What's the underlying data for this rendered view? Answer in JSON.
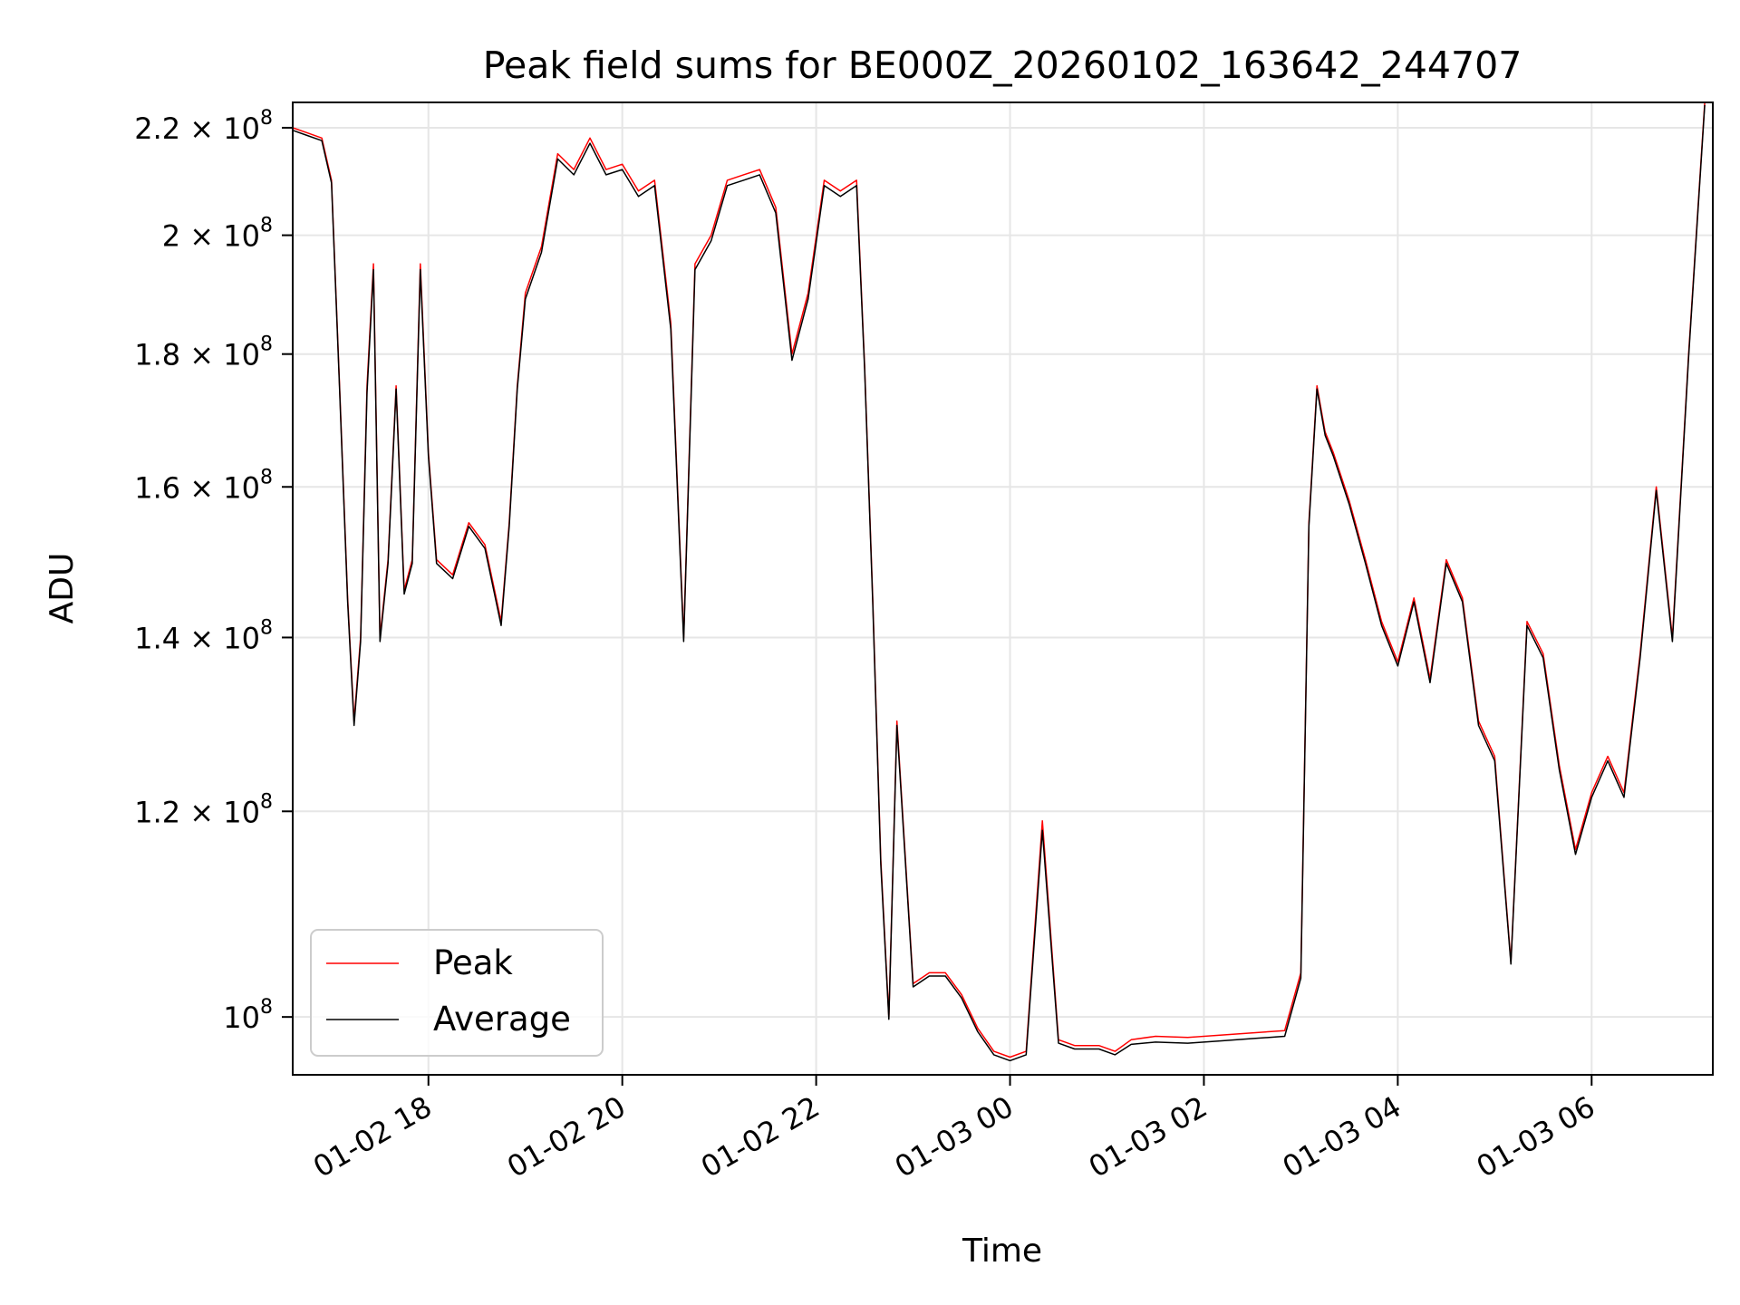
{
  "chart_data": {
    "type": "line",
    "title": "Peak field sums for BE000Z_20260102_163642_244707",
    "xlabel": "Time",
    "ylabel": "ADU",
    "x_type": "datetime",
    "xlim": [
      "2026-01-02 16:36",
      "2026-01-03 07:15"
    ],
    "ylim": [
      95000000,
      225000000
    ],
    "y_scale": "log",
    "grid": true,
    "legend_position": "lower-left",
    "x_ticks": [
      "01-02 18",
      "01-02 20",
      "01-02 22",
      "01-03 00",
      "01-03 02",
      "01-03 04",
      "01-03 06"
    ],
    "y_ticks": [
      {
        "value": 100000000,
        "mantissa": "",
        "exponent": "8"
      },
      {
        "value": 120000000,
        "mantissa": "1.2",
        "exponent": "8"
      },
      {
        "value": 140000000,
        "mantissa": "1.4",
        "exponent": "8"
      },
      {
        "value": 160000000,
        "mantissa": "1.6",
        "exponent": "8"
      },
      {
        "value": 180000000,
        "mantissa": "1.8",
        "exponent": "8"
      },
      {
        "value": 200000000,
        "mantissa": "2",
        "exponent": "8"
      },
      {
        "value": 220000000,
        "mantissa": "2.2",
        "exponent": "8"
      }
    ],
    "x": [
      "2026-01-02 16:36",
      "2026-01-02 16:45",
      "2026-01-02 16:54",
      "2026-01-02 17:00",
      "2026-01-02 17:05",
      "2026-01-02 17:10",
      "2026-01-02 17:14",
      "2026-01-02 17:18",
      "2026-01-02 17:22",
      "2026-01-02 17:26",
      "2026-01-02 17:30",
      "2026-01-02 17:35",
      "2026-01-02 17:40",
      "2026-01-02 17:45",
      "2026-01-02 17:50",
      "2026-01-02 17:55",
      "2026-01-02 18:00",
      "2026-01-02 18:05",
      "2026-01-02 18:15",
      "2026-01-02 18:25",
      "2026-01-02 18:35",
      "2026-01-02 18:45",
      "2026-01-02 18:50",
      "2026-01-02 18:55",
      "2026-01-02 19:00",
      "2026-01-02 19:10",
      "2026-01-02 19:20",
      "2026-01-02 19:30",
      "2026-01-02 19:40",
      "2026-01-02 19:50",
      "2026-01-02 20:00",
      "2026-01-02 20:10",
      "2026-01-02 20:20",
      "2026-01-02 20:30",
      "2026-01-02 20:38",
      "2026-01-02 20:45",
      "2026-01-02 20:55",
      "2026-01-02 21:05",
      "2026-01-02 21:15",
      "2026-01-02 21:25",
      "2026-01-02 21:35",
      "2026-01-02 21:45",
      "2026-01-02 21:55",
      "2026-01-02 22:05",
      "2026-01-02 22:15",
      "2026-01-02 22:25",
      "2026-01-02 22:30",
      "2026-01-02 22:35",
      "2026-01-02 22:40",
      "2026-01-02 22:45",
      "2026-01-02 22:50",
      "2026-01-02 23:00",
      "2026-01-02 23:10",
      "2026-01-02 23:20",
      "2026-01-02 23:30",
      "2026-01-02 23:40",
      "2026-01-02 23:50",
      "2026-01-03 00:00",
      "2026-01-03 00:10",
      "2026-01-03 00:20",
      "2026-01-03 00:30",
      "2026-01-03 00:40",
      "2026-01-03 00:55",
      "2026-01-03 01:05",
      "2026-01-03 01:15",
      "2026-01-03 01:30",
      "2026-01-03 01:50",
      "2026-01-03 02:10",
      "2026-01-03 02:30",
      "2026-01-03 02:50",
      "2026-01-03 03:00",
      "2026-01-03 03:05",
      "2026-01-03 03:10",
      "2026-01-03 03:15",
      "2026-01-03 03:20",
      "2026-01-03 03:30",
      "2026-01-03 03:40",
      "2026-01-03 03:50",
      "2026-01-03 04:00",
      "2026-01-03 04:10",
      "2026-01-03 04:20",
      "2026-01-03 04:30",
      "2026-01-03 04:40",
      "2026-01-03 04:50",
      "2026-01-03 05:00",
      "2026-01-03 05:10",
      "2026-01-03 05:20",
      "2026-01-03 05:30",
      "2026-01-03 05:40",
      "2026-01-03 05:50",
      "2026-01-03 06:00",
      "2026-01-03 06:10",
      "2026-01-03 06:20",
      "2026-01-03 06:30",
      "2026-01-03 06:40",
      "2026-01-03 06:50",
      "2026-01-03 07:00",
      "2026-01-03 07:10"
    ],
    "series": [
      {
        "name": "Peak",
        "color": "#ff0000",
        "values": [
          220000000,
          219000000,
          218000000,
          210000000,
          175000000,
          145000000,
          130000000,
          140000000,
          175000000,
          195000000,
          140000000,
          150000000,
          175000000,
          146000000,
          150000000,
          195000000,
          165000000,
          150000000,
          148000000,
          155000000,
          152000000,
          142000000,
          155000000,
          175000000,
          190000000,
          198000000,
          215000000,
          212000000,
          218000000,
          212000000,
          213000000,
          208000000,
          210000000,
          185000000,
          140000000,
          195000000,
          200000000,
          210000000,
          211000000,
          212000000,
          205000000,
          180000000,
          190000000,
          210000000,
          208000000,
          210000000,
          178000000,
          145000000,
          115000000,
          100000000,
          130000000,
          103000000,
          104000000,
          104000000,
          102000000,
          99000000,
          97000000,
          96500000,
          97000000,
          119000000,
          98000000,
          97500000,
          97500000,
          97000000,
          98000000,
          98300000,
          98200000,
          98400000,
          98600000,
          98800000,
          104000000,
          155000000,
          175000000,
          168000000,
          165000000,
          158000000,
          150000000,
          142000000,
          137000000,
          145000000,
          135000000,
          150000000,
          145000000,
          130000000,
          126000000,
          105000000,
          142000000,
          138000000,
          125000000,
          116000000,
          122000000,
          126000000,
          122000000,
          138000000,
          160000000,
          140000000,
          180000000,
          225000000
        ]
      },
      {
        "name": "Average",
        "color": "#000000",
        "values": [
          219500000,
          218500000,
          217500000,
          209500000,
          174500000,
          144500000,
          129500000,
          139500000,
          174000000,
          194000000,
          139500000,
          149500000,
          174500000,
          145500000,
          149500000,
          194000000,
          164500000,
          149500000,
          147500000,
          154500000,
          151500000,
          141500000,
          154500000,
          174500000,
          189000000,
          197000000,
          214000000,
          211000000,
          217000000,
          211000000,
          212000000,
          207000000,
          209000000,
          184000000,
          139500000,
          194000000,
          199000000,
          209000000,
          210000000,
          211000000,
          204000000,
          179000000,
          189000000,
          209000000,
          207000000,
          209000000,
          177500000,
          144500000,
          114500000,
          99800000,
          129500000,
          102700000,
          103700000,
          103700000,
          101700000,
          98700000,
          96700000,
          96200000,
          96700000,
          118000000,
          97700000,
          97200000,
          97200000,
          96700000,
          97600000,
          97800000,
          97700000,
          97900000,
          98100000,
          98300000,
          103500000,
          154500000,
          174500000,
          167500000,
          164500000,
          157500000,
          149500000,
          141500000,
          136500000,
          144500000,
          134500000,
          149500000,
          144500000,
          129500000,
          125500000,
          104800000,
          141500000,
          137500000,
          124500000,
          115500000,
          121500000,
          125500000,
          121500000,
          137500000,
          159500000,
          139500000,
          179500000,
          224500000
        ]
      }
    ]
  }
}
